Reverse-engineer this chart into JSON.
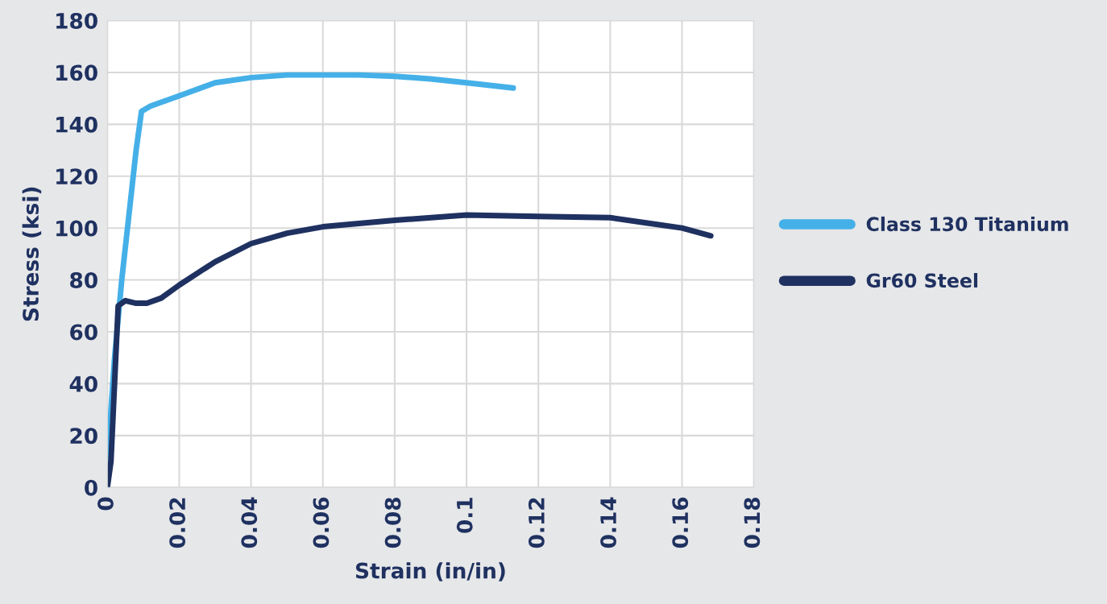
{
  "chart_data": {
    "type": "line",
    "xlabel": "Strain (in/in)",
    "ylabel": "Stress (ksi)",
    "xlim": [
      0,
      0.18
    ],
    "xticks": [
      0,
      0.02,
      0.04,
      0.06,
      0.08,
      0.1,
      0.12,
      0.14,
      0.16,
      0.18
    ],
    "ylim": [
      0,
      180
    ],
    "yticks": [
      0,
      20,
      40,
      60,
      80,
      100,
      120,
      140,
      160,
      180
    ],
    "grid": true,
    "legend": "right",
    "marker": "none",
    "line_style": "solid",
    "series": [
      {
        "name": "Class 130 Titanium",
        "color": "#45b0e8",
        "x": [
          0,
          0.0005,
          0.002,
          0.004,
          0.006,
          0.008,
          0.0095,
          0.012,
          0.02,
          0.03,
          0.04,
          0.05,
          0.06,
          0.07,
          0.08,
          0.09,
          0.1,
          0.113
        ],
        "values": [
          0,
          20,
          50,
          80,
          105,
          130,
          145,
          147,
          151,
          156,
          158,
          159,
          159,
          159,
          158.5,
          157.5,
          156,
          154
        ]
      },
      {
        "name": "Gr60 Steel",
        "color": "#1f3160",
        "x": [
          0,
          0.001,
          0.002,
          0.003,
          0.005,
          0.008,
          0.011,
          0.015,
          0.02,
          0.03,
          0.04,
          0.05,
          0.06,
          0.08,
          0.1,
          0.12,
          0.14,
          0.15,
          0.16,
          0.168
        ],
        "values": [
          0,
          10,
          40,
          70,
          72,
          71,
          71,
          73,
          78,
          87,
          94,
          98,
          100.5,
          103,
          105,
          104.5,
          104,
          102,
          100,
          97
        ]
      }
    ]
  }
}
